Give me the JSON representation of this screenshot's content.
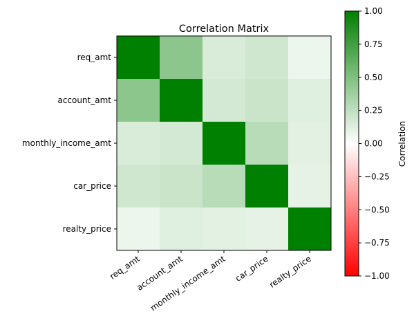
{
  "chart_data": {
    "type": "heatmap",
    "title": "Correlation Matrix",
    "rows": [
      "req_amt",
      "account_amt",
      "monthly_income_amt",
      "car_price",
      "realty_price"
    ],
    "columns": [
      "req_amt",
      "account_amt",
      "monthly_income_amt",
      "car_price",
      "realty_price"
    ],
    "values": [
      [
        1.0,
        0.45,
        0.15,
        0.19,
        0.07
      ],
      [
        0.45,
        1.0,
        0.17,
        0.21,
        0.12
      ],
      [
        0.15,
        0.17,
        1.0,
        0.28,
        0.11
      ],
      [
        0.19,
        0.21,
        0.28,
        1.0,
        0.1
      ],
      [
        0.07,
        0.12,
        0.11,
        0.1,
        1.0
      ]
    ],
    "colorbar": {
      "label": "Correlation",
      "range": [
        -1.0,
        1.0
      ],
      "ticks": [
        "1.00",
        "0.75",
        "0.50",
        "0.25",
        "0.00",
        "−0.25",
        "−0.50",
        "−0.75",
        "−1.00"
      ],
      "tick_values": [
        1.0,
        0.75,
        0.5,
        0.25,
        0.0,
        -0.25,
        -0.5,
        -0.75,
        -1.0
      ],
      "colors": {
        "low": "#ff0000",
        "mid": "#ffffff",
        "high": "#008000"
      }
    },
    "grid": false
  }
}
